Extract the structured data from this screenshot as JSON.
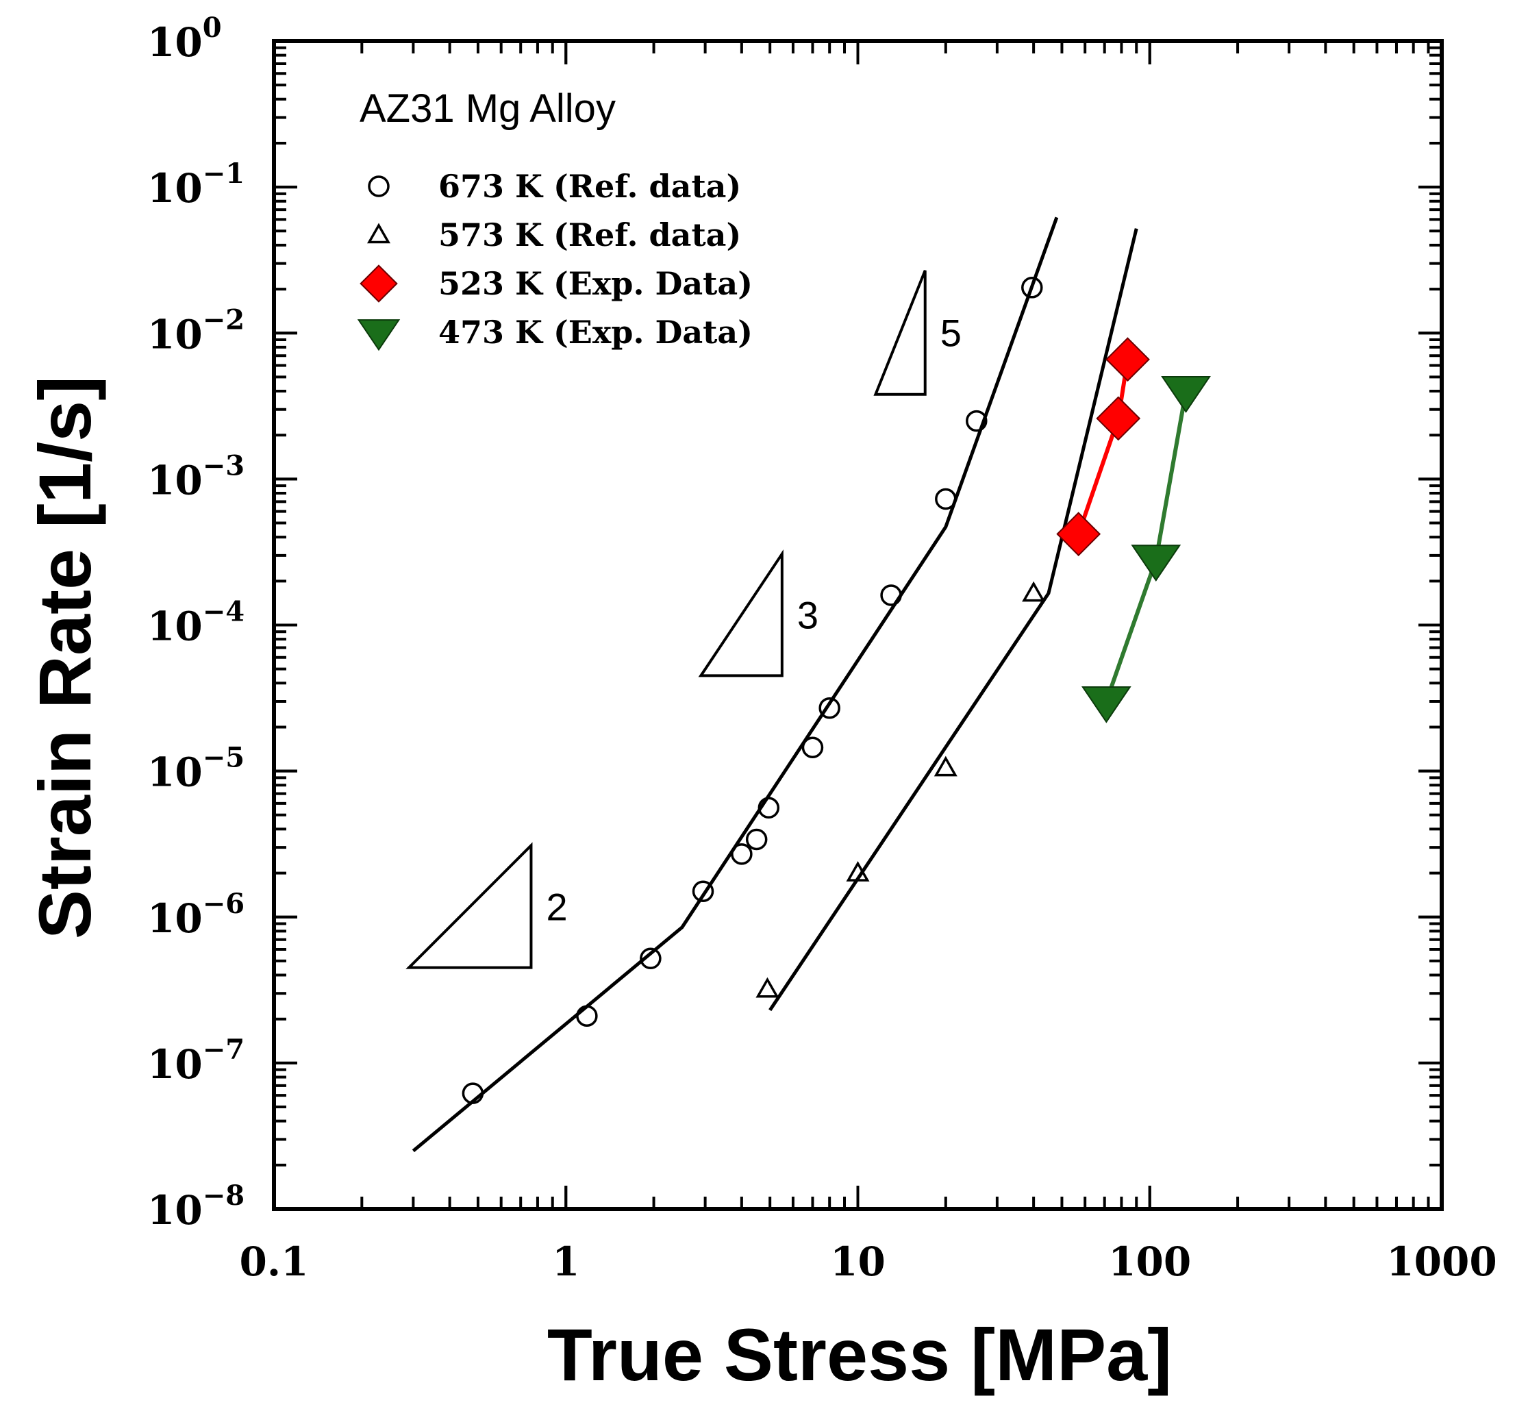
{
  "chart_data": {
    "type": "scatter",
    "title": "AZ31 Mg Alloy",
    "xlabel": "True Stress [MPa]",
    "ylabel": "Strain Rate [1/s]",
    "xscale": "log",
    "yscale": "log",
    "xlim": [
      0.1,
      1000
    ],
    "ylim": [
      1e-08,
      1
    ],
    "x_ticks": [
      {
        "value": 0.1,
        "label": "0.1"
      },
      {
        "value": 1,
        "label": "1"
      },
      {
        "value": 10,
        "label": "10"
      },
      {
        "value": 100,
        "label": "100"
      },
      {
        "value": 1000,
        "label": "1000"
      }
    ],
    "y_ticks": [
      {
        "value": 1,
        "base": "10",
        "exp": "0"
      },
      {
        "value": 0.1,
        "base": "10",
        "exp": "−1"
      },
      {
        "value": 0.01,
        "base": "10",
        "exp": "−2"
      },
      {
        "value": 0.001,
        "base": "10",
        "exp": "−3"
      },
      {
        "value": 0.0001,
        "base": "10",
        "exp": "−4"
      },
      {
        "value": 1e-05,
        "base": "10",
        "exp": "−5"
      },
      {
        "value": 1e-06,
        "base": "10",
        "exp": "−6"
      },
      {
        "value": 1e-07,
        "base": "10",
        "exp": "−7"
      },
      {
        "value": 1e-08,
        "base": "10",
        "exp": "−8"
      }
    ],
    "legend_position": "top-left",
    "series": [
      {
        "name": "673 K (Ref. data)",
        "marker": "open-circle",
        "color": "#000000",
        "points": [
          [
            0.48,
            6.2e-08
          ],
          [
            1.18,
            2.1e-07
          ],
          [
            1.95,
            5.2e-07
          ],
          [
            2.95,
            1.5e-06
          ],
          [
            4.0,
            2.7e-06
          ],
          [
            4.5,
            3.4e-06
          ],
          [
            4.95,
            5.6e-06
          ],
          [
            7.0,
            1.45e-05
          ],
          [
            8.0,
            2.7e-05
          ],
          [
            13.0,
            0.00016
          ],
          [
            20.0,
            0.00073
          ],
          [
            25.5,
            0.0025
          ],
          [
            39.5,
            0.0205
          ]
        ]
      },
      {
        "name": "573 K (Ref. data)",
        "marker": "open-triangle-up",
        "color": "#000000",
        "points": [
          [
            4.9,
            3.2e-07
          ],
          [
            10.0,
            2e-06
          ],
          [
            20.0,
            1.05e-05
          ],
          [
            40.0,
            0.000165
          ]
        ]
      },
      {
        "name": "523 K (Exp. Data)",
        "marker": "filled-diamond",
        "color": "#ff0000",
        "line_color": "#ff0000",
        "points": [
          [
            57,
            0.00042
          ],
          [
            78,
            0.0026
          ],
          [
            84,
            0.0066
          ]
        ]
      },
      {
        "name": "473 K (Exp. Data)",
        "marker": "filled-triangle-down",
        "color": "#1a6e1a",
        "line_color": "#2f7a2f",
        "points": [
          [
            71,
            3e-05
          ],
          [
            105,
            0.00028
          ],
          [
            133,
            0.004
          ]
        ]
      }
    ],
    "fit_lines": [
      {
        "name": "673 K fit",
        "color": "#000000",
        "points": [
          [
            0.3,
            2.5e-08
          ],
          [
            2.5,
            8.5e-07
          ],
          [
            20,
            0.00047
          ],
          [
            48,
            0.062
          ]
        ]
      },
      {
        "name": "573 K fit",
        "color": "#000000",
        "points": [
          [
            5.0,
            2.3e-07
          ],
          [
            45,
            0.000165
          ],
          [
            90,
            0.052
          ]
        ]
      }
    ],
    "slope_triangles": [
      {
        "slope_label": "2",
        "x_start": 0.29,
        "x_end": 0.76,
        "y_base": 4.5e-07
      },
      {
        "slope_label": "3",
        "x_start": 2.9,
        "x_end": 5.5,
        "y_base": 4.5e-05
      },
      {
        "slope_label": "5",
        "x_start": 11.5,
        "x_end": 17.0,
        "y_base": 0.0038
      }
    ]
  }
}
